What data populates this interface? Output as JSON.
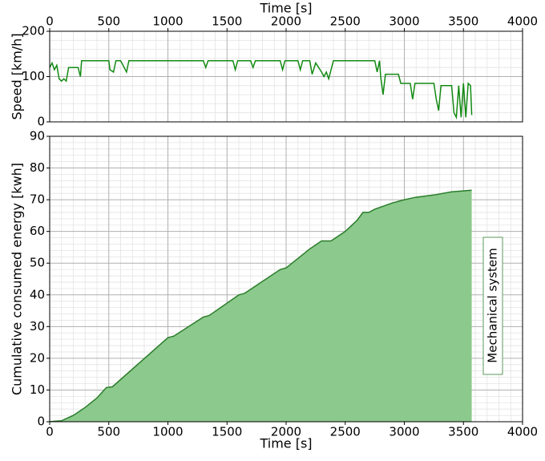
{
  "chart_data": [
    {
      "type": "line",
      "xlabel": "Time [s]",
      "ylabel": "Speed [km/h]",
      "xaxis_position": "top",
      "color": "#138a13",
      "grid": true,
      "xlim": [
        0,
        4000
      ],
      "xticks": [
        0,
        500,
        1000,
        1500,
        2000,
        2500,
        3000,
        3500,
        4000
      ],
      "ylim": [
        0,
        200
      ],
      "yticks": [
        0,
        100,
        200
      ],
      "x": [
        0,
        20,
        40,
        60,
        80,
        100,
        120,
        140,
        160,
        240,
        260,
        270,
        500,
        510,
        540,
        560,
        600,
        650,
        670,
        1300,
        1320,
        1340,
        1550,
        1570,
        1590,
        1700,
        1720,
        1740,
        1950,
        1970,
        1990,
        2100,
        2120,
        2140,
        2200,
        2220,
        2250,
        2300,
        2320,
        2340,
        2360,
        2380,
        2400,
        2750,
        2770,
        2790,
        2800,
        2820,
        2840,
        2950,
        2970,
        3050,
        3070,
        3090,
        3250,
        3270,
        3290,
        3310,
        3400,
        3420,
        3440,
        3460,
        3480,
        3500,
        3520,
        3540,
        3560,
        3570
      ],
      "values": [
        120,
        130,
        115,
        125,
        95,
        90,
        95,
        90,
        120,
        120,
        100,
        135,
        135,
        115,
        110,
        135,
        135,
        110,
        135,
        135,
        120,
        135,
        135,
        115,
        135,
        135,
        120,
        135,
        135,
        115,
        135,
        135,
        115,
        135,
        135,
        105,
        130,
        110,
        100,
        110,
        95,
        115,
        135,
        135,
        110,
        135,
        100,
        60,
        105,
        105,
        85,
        85,
        50,
        85,
        85,
        50,
        25,
        80,
        80,
        20,
        10,
        80,
        10,
        85,
        10,
        85,
        80,
        15
      ]
    },
    {
      "type": "area",
      "xlabel": "Time [s]",
      "ylabel": "Cumulative consumed energy [kwh]",
      "xaxis_position": "bottom",
      "color": "#2a7d2a",
      "fill": "#8cc98c",
      "grid": true,
      "annotation": "Mechanical system",
      "xlim": [
        0,
        4000
      ],
      "xticks": [
        0,
        500,
        1000,
        1500,
        2000,
        2500,
        3000,
        3500,
        4000
      ],
      "ylim": [
        0,
        90
      ],
      "yticks": [
        0,
        10,
        20,
        30,
        40,
        50,
        60,
        70,
        80,
        90
      ],
      "x": [
        0,
        50,
        100,
        200,
        300,
        400,
        480,
        530,
        1000,
        1050,
        1300,
        1350,
        1600,
        1650,
        1950,
        2000,
        2200,
        2300,
        2380,
        2500,
        2600,
        2650,
        2700,
        2750,
        2900,
        3000,
        3100,
        3250,
        3400,
        3570
      ],
      "values": [
        0,
        0.2,
        0.3,
        2,
        4.5,
        7.5,
        10.8,
        11,
        26.5,
        27,
        33,
        33.5,
        40,
        40.5,
        48,
        48.5,
        54.5,
        57,
        57,
        60,
        63.5,
        66,
        66,
        67,
        69,
        70,
        70.8,
        71.5,
        72.5,
        73
      ]
    }
  ]
}
